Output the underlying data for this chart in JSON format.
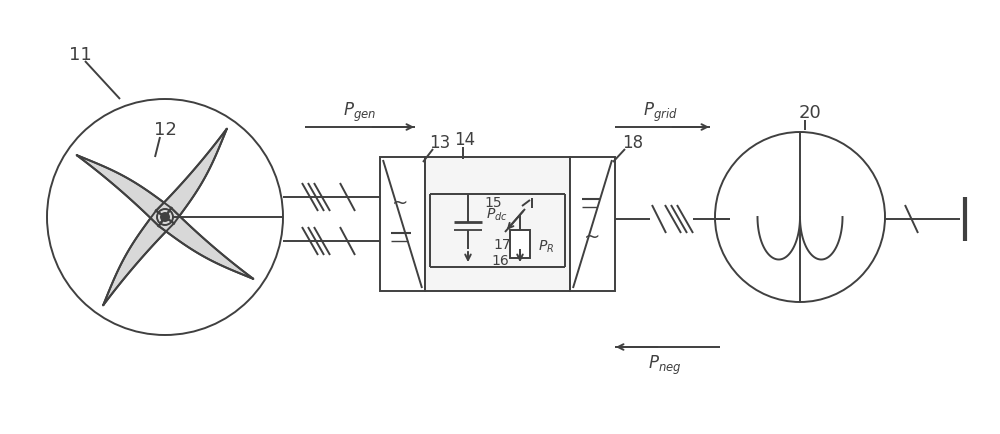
{
  "bg_color": "#ffffff",
  "line_color": "#404040",
  "figsize": [
    10.0,
    4.35
  ],
  "dpi": 100
}
